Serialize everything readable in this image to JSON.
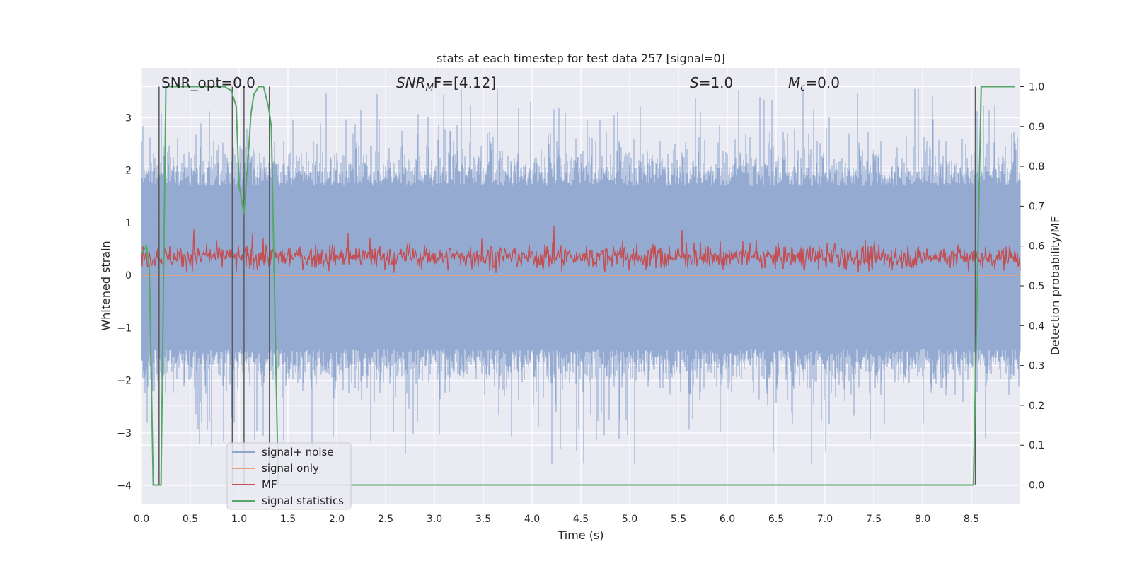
{
  "chart_data": {
    "type": "line",
    "title": "stats at each timestep for test data 257 [signal=0]",
    "xlabel": "Time (s)",
    "ylabel": "Whitened strain",
    "y2label": "Detection probability/MF",
    "xlim": [
      0.0,
      9.0
    ],
    "ylim": [
      -4.35,
      3.95
    ],
    "y2lim": [
      -0.047,
      1.047
    ],
    "x_ticks": [
      0.0,
      0.5,
      1.0,
      1.5,
      2.0,
      2.5,
      3.0,
      3.5,
      4.0,
      4.5,
      5.0,
      5.5,
      6.0,
      6.5,
      7.0,
      7.5,
      8.0,
      8.5
    ],
    "x_tick_labels": [
      "0.0",
      "0.5",
      "1.0",
      "1.5",
      "2.0",
      "2.5",
      "3.0",
      "3.5",
      "4.0",
      "4.5",
      "5.0",
      "5.5",
      "6.0",
      "6.5",
      "7.0",
      "7.5",
      "8.0",
      "8.5"
    ],
    "y_ticks": [
      -4,
      -3,
      -2,
      -1,
      0,
      1,
      2,
      3
    ],
    "y_tick_labels": [
      "−4",
      "−3",
      "−2",
      "−1",
      "0",
      "1",
      "2",
      "3"
    ],
    "y2_ticks": [
      0.0,
      0.1,
      0.2,
      0.3,
      0.4,
      0.5,
      0.6,
      0.7,
      0.8,
      0.9,
      1.0
    ],
    "y2_tick_labels": [
      "0.0",
      "0.1",
      "0.2",
      "0.3",
      "0.4",
      "0.5",
      "0.6",
      "0.7",
      "0.8",
      "0.9",
      "1.0"
    ],
    "grid": true,
    "legend_position": "lower-left",
    "annotations": {
      "snr_opt": "SNR_opt=0.0",
      "snr_mf_base": "SNR",
      "snr_mf_sub": "M",
      "snr_mf_rest": "F=[4.12]",
      "s_base": "S",
      "s_rest": "=1.0",
      "mc_base": "M",
      "mc_sub": "c",
      "mc_rest": "=0.0"
    },
    "series": [
      {
        "name": "signal+ noise",
        "color": "#8fa6cf",
        "description_values": {
          "approx_range": [
            -3.6,
            3.55
          ],
          "typical_band": [
            -1.8,
            2.6
          ]
        }
      },
      {
        "name": "signal only",
        "color": "#e8a17f",
        "y": 0.0
      },
      {
        "name": "MF",
        "color": "#c44e52",
        "approx_range": [
          0.0,
          0.98
        ],
        "typical_band": [
          0.1,
          0.65
        ]
      },
      {
        "name": "signal statistics",
        "color": "#55a868",
        "axis": "right",
        "x": [
          0.0,
          0.05,
          0.08,
          0.12,
          0.17,
          0.2,
          0.25,
          0.3,
          0.5,
          0.7,
          0.85,
          0.92,
          0.97,
          1.0,
          1.05,
          1.1,
          1.12,
          1.15,
          1.2,
          1.25,
          1.3,
          1.33,
          1.4,
          1.5,
          2.0,
          3.0,
          4.0,
          5.0,
          6.0,
          7.0,
          8.0,
          8.52,
          8.56,
          8.6,
          8.65,
          8.7,
          8.95
        ],
        "y": [
          0.58,
          0.6,
          0.55,
          0.0,
          0.0,
          0.0,
          1.0,
          1.0,
          1.0,
          1.0,
          1.0,
          0.99,
          0.95,
          0.75,
          0.68,
          0.85,
          0.93,
          0.98,
          1.0,
          1.0,
          0.95,
          0.9,
          0.0,
          0.0,
          0.0,
          0.0,
          0.0,
          0.0,
          0.0,
          0.0,
          0.0,
          0.0,
          0.5,
          1.0,
          1.0,
          1.0,
          1.0
        ]
      }
    ],
    "vertical_lines": {
      "color": "#595959",
      "x": [
        0.18,
        0.93,
        1.05,
        1.31,
        8.54
      ]
    }
  }
}
